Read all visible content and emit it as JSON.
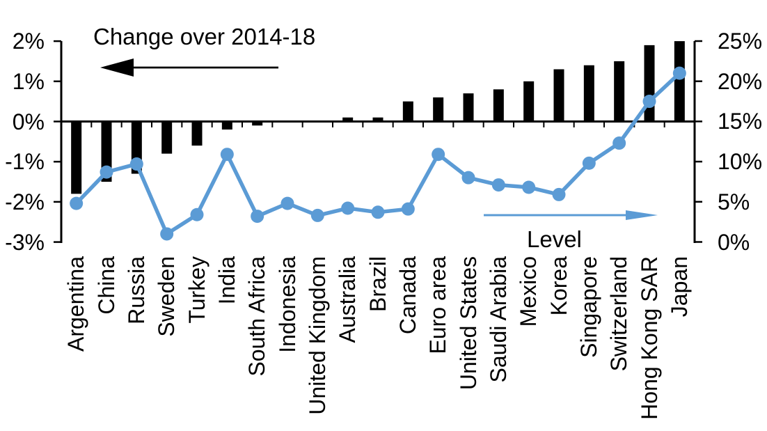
{
  "chart_data": {
    "type": "combo",
    "categories": [
      "Argentina",
      "China",
      "Russia",
      "Sweden",
      "Turkey",
      "India",
      "South Africa",
      "Indonesia",
      "United Kingdom",
      "Australia",
      "Brazil",
      "Canada",
      "Euro area",
      "United States",
      "Saudi Arabia",
      "Mexico",
      "Korea",
      "Singapore",
      "Switzerland",
      "Hong Kong SAR",
      "Japan"
    ],
    "series": [
      {
        "name": "Change over 2014-18",
        "type": "bar",
        "axis": "left",
        "color": "#000000",
        "values": [
          -1.8,
          -1.5,
          -1.3,
          -0.8,
          -0.6,
          -0.2,
          -0.1,
          0.0,
          0.0,
          0.1,
          0.1,
          0.5,
          0.6,
          0.7,
          0.8,
          1.0,
          1.3,
          1.4,
          1.5,
          1.9,
          2.0
        ]
      },
      {
        "name": "Level",
        "type": "line",
        "axis": "right",
        "color": "#5B9BD5",
        "values": [
          4.8,
          8.7,
          9.7,
          1.0,
          3.4,
          10.9,
          3.2,
          4.8,
          3.3,
          4.2,
          3.7,
          4.1,
          10.9,
          8.0,
          7.1,
          6.8,
          5.9,
          9.8,
          12.3,
          17.5,
          21.0
        ]
      }
    ],
    "left_axis": {
      "min": -3,
      "max": 2,
      "tick_labels": [
        "2%",
        "1%",
        "0%",
        "-1%",
        "-2%",
        "-3%"
      ],
      "tick_values": [
        2,
        1,
        0,
        -1,
        -2,
        -3
      ]
    },
    "right_axis": {
      "min": 0,
      "max": 25,
      "tick_labels": [
        "25%",
        "20%",
        "15%",
        "10%",
        "5%",
        "0%"
      ],
      "tick_values": [
        25,
        20,
        15,
        10,
        5,
        0
      ]
    },
    "annotations": {
      "bar_label": {
        "text": "Change over 2014-18",
        "arrow": "left",
        "arrow_color": "#000000"
      },
      "line_label": {
        "text": "Level",
        "arrow": "right",
        "arrow_color": "#5B9BD5"
      }
    },
    "grid": false,
    "legend_position": "none"
  }
}
